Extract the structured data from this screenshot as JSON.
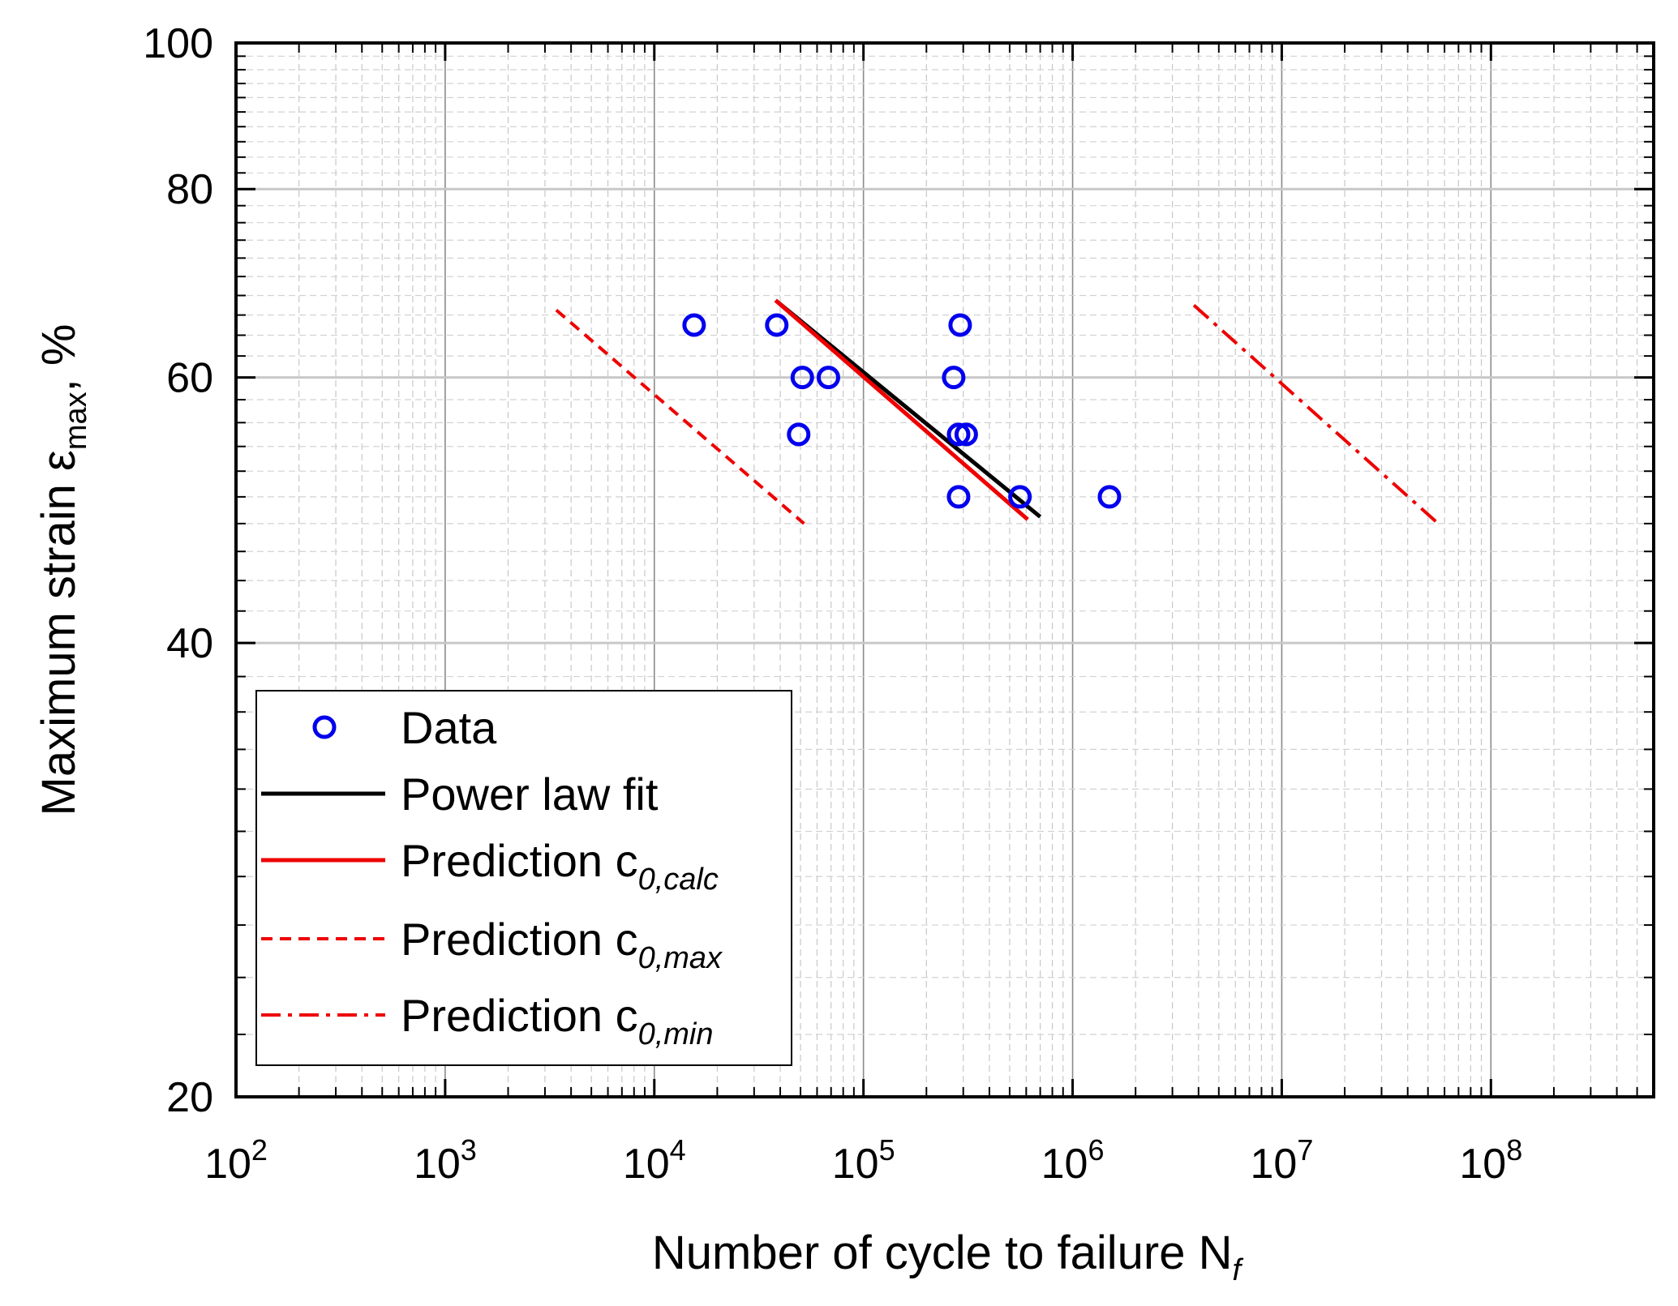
{
  "chart_data": {
    "type": "scatter",
    "x_scale": "log",
    "y_scale": "log",
    "xlim": [
      100,
      600000000
    ],
    "ylim": [
      20,
      100
    ],
    "xlabel": "Number of cycle to failure N",
    "xlabel_subscript": "f",
    "ylabel": "Maximum strain ε",
    "ylabel_subscript": "max",
    "ylabel_unit": ", %",
    "x_ticks": [
      {
        "base": "10",
        "exp": "2",
        "value": 100
      },
      {
        "base": "10",
        "exp": "3",
        "value": 1000
      },
      {
        "base": "10",
        "exp": "4",
        "value": 10000
      },
      {
        "base": "10",
        "exp": "5",
        "value": 100000
      },
      {
        "base": "10",
        "exp": "6",
        "value": 1000000
      },
      {
        "base": "10",
        "exp": "7",
        "value": 10000000
      },
      {
        "base": "10",
        "exp": "8",
        "value": 100000000
      }
    ],
    "y_ticks": [
      {
        "label": "20",
        "value": 20
      },
      {
        "label": "40",
        "value": 40
      },
      {
        "label": "60",
        "value": 60
      },
      {
        "label": "80",
        "value": 80
      },
      {
        "label": "100",
        "value": 100
      }
    ],
    "grid": true,
    "legend_position": "bottom-left",
    "series": [
      {
        "name": "Data",
        "kind": "markers",
        "color": "#0000ee",
        "points": [
          {
            "x": 15500,
            "y": 65
          },
          {
            "x": 38500,
            "y": 65
          },
          {
            "x": 290000,
            "y": 65
          },
          {
            "x": 51000,
            "y": 60
          },
          {
            "x": 68000,
            "y": 60
          },
          {
            "x": 270000,
            "y": 60
          },
          {
            "x": 49000,
            "y": 55
          },
          {
            "x": 285000,
            "y": 55
          },
          {
            "x": 310000,
            "y": 55
          },
          {
            "x": 285000,
            "y": 50
          },
          {
            "x": 560000,
            "y": 50
          },
          {
            "x": 1500000,
            "y": 50
          }
        ]
      },
      {
        "name": "Power law fit",
        "kind": "line",
        "color": "#000000",
        "dash": "solid",
        "points": [
          {
            "x": 38000,
            "y": 67.5
          },
          {
            "x": 700000,
            "y": 48.5
          }
        ]
      },
      {
        "name": "Prediction c",
        "subscript": "0,calc",
        "kind": "line",
        "color": "#ee0000",
        "dash": "solid",
        "points": [
          {
            "x": 38000,
            "y": 67.5
          },
          {
            "x": 610000,
            "y": 48.3
          }
        ]
      },
      {
        "name": "Prediction c",
        "subscript": "0,max",
        "kind": "line",
        "color": "#ee0000",
        "dash": "dashed",
        "points": [
          {
            "x": 3400,
            "y": 66.5
          },
          {
            "x": 52000,
            "y": 48
          }
        ]
      },
      {
        "name": "Prediction c",
        "subscript": "0,min",
        "kind": "line",
        "color": "#ee0000",
        "dash": "dashdot",
        "points": [
          {
            "x": 3800000,
            "y": 67
          },
          {
            "x": 56000000,
            "y": 48
          }
        ]
      }
    ]
  }
}
